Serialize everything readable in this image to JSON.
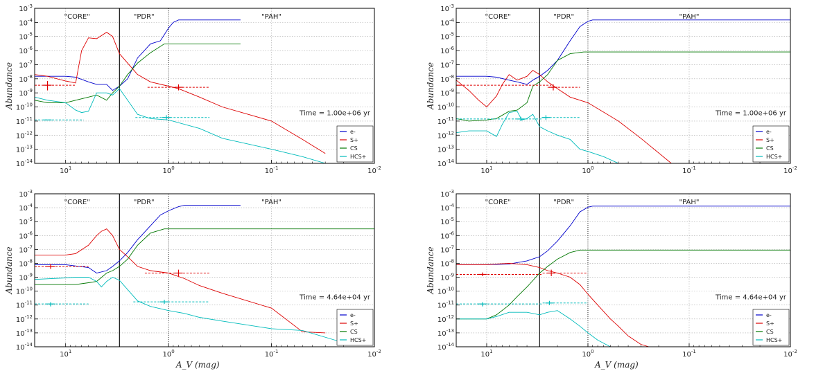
{
  "chart_data": [
    {
      "type": "line",
      "time_label": "Time = 1.00e+06 yr",
      "ylabel": "Abundance",
      "xlabel": "",
      "regions": [
        "\"CORE\"",
        "\"PDR\"",
        "\"PAH\""
      ],
      "region_bounds_av": [
        3.0,
        1.0
      ],
      "xlim": [
        20,
        0.01
      ],
      "ylim": [
        1e-14,
        0.001
      ],
      "xscale": "log",
      "yscale": "log",
      "grid": true,
      "legend": {
        "placement": "bottom-right",
        "labels": [
          "e-",
          "S+",
          "CS",
          "HCS+"
        ]
      },
      "series": [
        {
          "name": "e-",
          "color": "#0000cc",
          "av": [
            20,
            10,
            8,
            6,
            5,
            4,
            3.5,
            3,
            2.5,
            2,
            1.5,
            1.2,
            1,
            0.9,
            0.8,
            0.7,
            0.2
          ],
          "values": [
            1.5e-08,
            1.5e-08,
            1.3e-08,
            6e-09,
            4e-09,
            4e-09,
            1.5e-09,
            3e-09,
            1e-08,
            3e-07,
            3e-06,
            5e-06,
            4e-05,
            0.0001,
            0.00015,
            0.00015,
            0.00015
          ]
        },
        {
          "name": "S+",
          "color": "#dd0000",
          "av": [
            20,
            15,
            10,
            8,
            7,
            6,
            5,
            4,
            3.5,
            3,
            2,
            1.5,
            1,
            0.8,
            0.5,
            0.3,
            0.1,
            0.05,
            0.03
          ],
          "values": [
            2e-08,
            1.5e-08,
            7e-09,
            5e-09,
            1e-06,
            8e-06,
            7e-06,
            2e-05,
            1e-05,
            6e-07,
            2e-08,
            6e-09,
            3e-09,
            2e-09,
            5e-10,
            1e-10,
            1e-11,
            5e-13,
            5e-14
          ]
        },
        {
          "name": "CS",
          "color": "#007700",
          "av": [
            20,
            15,
            10,
            8,
            6,
            5,
            4,
            3.5,
            3,
            2.5,
            2,
            1.5,
            1.1,
            1,
            0.2
          ],
          "values": [
            3e-10,
            2e-10,
            2e-10,
            3e-10,
            5e-10,
            7e-10,
            3e-10,
            1e-09,
            3e-09,
            2e-08,
            1.3e-07,
            7e-07,
            3e-06,
            3e-06,
            3e-06
          ]
        },
        {
          "name": "HCS+",
          "color": "#00bbbb",
          "av": [
            20,
            15,
            10,
            8,
            7,
            6,
            5,
            4,
            3.5,
            3,
            2.5,
            2,
            1.5,
            1,
            0.5,
            0.3,
            0.1,
            0.05,
            0.03
          ],
          "values": [
            5e-10,
            3e-10,
            2e-10,
            6e-11,
            4e-11,
            5e-11,
            1e-09,
            1e-09,
            7e-10,
            2e-09,
            3e-10,
            3e-11,
            1.5e-11,
            1.2e-11,
            3e-12,
            6e-13,
            1e-13,
            3e-14,
            1e-14
          ]
        }
      ],
      "observations": [
        {
          "color": "#dd0000",
          "av": 15,
          "value": 3.5e-09,
          "xerr": [
            20,
            8
          ],
          "yerr": [
            1.5e-09,
            7e-09
          ]
        },
        {
          "color": "#dd0000",
          "av": 0.8,
          "value": 2.5e-09,
          "xerr": [
            1.6,
            0.4
          ],
          "yerr": [
            1.5e-09,
            4e-09
          ]
        },
        {
          "color": "#00bbbb",
          "av": 15,
          "value": 1.2e-11,
          "xerr": [
            20,
            6.7
          ]
        },
        {
          "color": "#00bbbb",
          "av": 1.05,
          "value": 1.8e-11,
          "xerr": [
            2.1,
            0.4
          ],
          "yerr": [
            1.2e-11,
            2.6e-11
          ]
        }
      ]
    },
    {
      "type": "line",
      "time_label": "Time = 1.00e+06 yr",
      "ylabel": "Abundance",
      "xlabel": "",
      "regions": [
        "\"CORE\"",
        "\"PDR\"",
        "\"PAH\""
      ],
      "region_bounds_av": [
        3.0,
        1.0
      ],
      "xlim": [
        20,
        0.01
      ],
      "ylim": [
        1e-14,
        0.001
      ],
      "xscale": "log",
      "yscale": "log",
      "grid": true,
      "legend": {
        "placement": "bottom-right",
        "labels": [
          "e-",
          "S+",
          "CS",
          "HCS+"
        ]
      },
      "series": [
        {
          "name": "e-",
          "color": "#0000cc",
          "av": [
            20,
            10,
            8,
            6,
            5,
            4,
            3.5,
            3,
            2.5,
            2,
            1.5,
            1.2,
            1,
            0.9,
            0.8,
            0.01
          ],
          "values": [
            1.5e-08,
            1.5e-08,
            1.3e-08,
            8e-09,
            6e-09,
            4e-09,
            8e-09,
            1.5e-08,
            4e-08,
            2e-07,
            5e-06,
            5e-05,
            0.00012,
            0.00015,
            0.00015,
            0.00015
          ]
        },
        {
          "name": "S+",
          "color": "#dd0000",
          "av": [
            20,
            15,
            12,
            10,
            8,
            7,
            6,
            5,
            4,
            3.5,
            3,
            2.5,
            2,
            1.5,
            1,
            0.5,
            0.3,
            0.15
          ],
          "values": [
            8e-09,
            1.5e-09,
            3e-10,
            1e-10,
            6e-10,
            4e-09,
            2e-08,
            8e-09,
            1.5e-08,
            4e-08,
            2e-08,
            6e-09,
            2e-09,
            5e-10,
            2e-10,
            1e-11,
            6e-13,
            1e-14
          ]
        },
        {
          "name": "CS",
          "color": "#007700",
          "av": [
            20,
            15,
            10,
            8,
            6,
            5,
            4,
            3.5,
            3,
            2.5,
            2,
            1.5,
            1.1,
            1,
            0.01
          ],
          "values": [
            1.5e-11,
            1e-11,
            1.2e-11,
            1.5e-11,
            5e-11,
            6e-11,
            2e-10,
            3e-09,
            6e-09,
            2e-08,
            2e-07,
            6e-07,
            8e-07,
            8e-07,
            8e-07
          ]
        },
        {
          "name": "HCS+",
          "color": "#00bbbb",
          "av": [
            20,
            15,
            10,
            8,
            7,
            6,
            5,
            4.5,
            4,
            3.5,
            3,
            2.5,
            2,
            1.5,
            1.2,
            1,
            0.7,
            0.5,
            0.3
          ],
          "values": [
            1.5e-12,
            2e-12,
            2e-12,
            8e-13,
            6e-12,
            4e-11,
            5e-11,
            1.2e-11,
            1.5e-11,
            3e-11,
            4e-12,
            2e-12,
            1e-12,
            5e-13,
            1e-13,
            7e-14,
            3e-14,
            1e-14,
            1e-14
          ]
        }
      ],
      "observations": [
        {
          "color": "#dd0000",
          "av": 20,
          "value": 3.5e-09,
          "xerr": [
            20,
            2.3
          ]
        },
        {
          "color": "#dd0000",
          "av": 2.2,
          "value": 2.5e-09,
          "xerr": [
            2.5,
            1.2
          ],
          "yerr": [
            1.5e-09,
            4e-09
          ]
        },
        {
          "color": "#00bbbb",
          "av": 4.6,
          "value": 1.4e-11,
          "xerr": [
            20,
            2.8
          ],
          "yerr": [
            1e-11,
            2e-11
          ]
        },
        {
          "color": "#00bbbb",
          "av": 2.6,
          "value": 1.8e-11,
          "xerr": [
            2.8,
            1.2
          ],
          "yerr": [
            1.2e-11,
            2.6e-11
          ]
        }
      ]
    },
    {
      "type": "line",
      "time_label": "Time = 4.64e+04 yr",
      "ylabel": "Abundance",
      "xlabel": "A_V (mag)",
      "regions": [
        "\"CORE\"",
        "\"PDR\"",
        "\"PAH\""
      ],
      "region_bounds_av": [
        3.0,
        1.0
      ],
      "xlim": [
        20,
        0.01
      ],
      "ylim": [
        1e-14,
        0.001
      ],
      "xscale": "log",
      "yscale": "log",
      "grid": true,
      "legend": {
        "placement": "bottom-right",
        "labels": [
          "e-",
          "S+",
          "CS",
          "HCS+"
        ]
      },
      "series": [
        {
          "name": "e-",
          "color": "#0000cc",
          "av": [
            20,
            10,
            6,
            5,
            4,
            3.5,
            3,
            2.5,
            2,
            1.5,
            1.2,
            1,
            0.8,
            0.7,
            0.2
          ],
          "values": [
            8e-09,
            8e-09,
            5e-09,
            2e-09,
            3e-09,
            6e-09,
            1.5e-08,
            6e-08,
            5e-07,
            5e-06,
            3e-05,
            6e-05,
            0.00012,
            0.00015,
            0.00015
          ]
        },
        {
          "name": "S+",
          "color": "#dd0000",
          "av": [
            20,
            10,
            8,
            6,
            5,
            4.5,
            4,
            3.5,
            3,
            2.5,
            2,
            1.5,
            1,
            0.7,
            0.5,
            0.3,
            0.1,
            0.05,
            0.03
          ],
          "values": [
            4e-08,
            4e-08,
            5e-08,
            2e-07,
            1e-06,
            2e-06,
            3e-06,
            1e-06,
            1e-07,
            3e-08,
            6e-09,
            3e-09,
            2e-09,
            8e-10,
            2.5e-10,
            7e-11,
            6e-12,
            1.2e-13,
            1e-13
          ]
        },
        {
          "name": "CS",
          "color": "#007700",
          "av": [
            20,
            10,
            8,
            6,
            5,
            4,
            3.5,
            3,
            2.5,
            2,
            1.5,
            1.1,
            1,
            0.01
          ],
          "values": [
            3e-10,
            3e-10,
            3e-10,
            4e-10,
            5e-10,
            2e-09,
            3e-09,
            6e-09,
            2e-08,
            2e-07,
            1.5e-06,
            3e-06,
            3e-06,
            3e-06
          ]
        },
        {
          "name": "HCS+",
          "color": "#00bbbb",
          "av": [
            20,
            10,
            8,
            6,
            5,
            4.5,
            4,
            3.5,
            3,
            2,
            1.5,
            1,
            0.7,
            0.5,
            0.3,
            0.1,
            0.05,
            0.02
          ],
          "values": [
            7e-10,
            9e-10,
            1e-09,
            1e-09,
            5e-10,
            2e-10,
            5e-10,
            1e-09,
            6e-10,
            2e-11,
            8e-12,
            4e-12,
            2.5e-12,
            1.3e-12,
            7e-13,
            2e-13,
            1.5e-13,
            2e-14
          ]
        }
      ],
      "observations": [
        {
          "color": "#dd0000",
          "av": 14,
          "value": 6e-09,
          "xerr": [
            20,
            6
          ],
          "yerr": [
            4e-09,
            9e-09
          ]
        },
        {
          "color": "#dd0000",
          "av": 0.8,
          "value": 2e-09,
          "xerr": [
            1.7,
            0.4
          ],
          "yerr": [
            1.2e-09,
            3.5e-09
          ]
        },
        {
          "color": "#00bbbb",
          "av": 14,
          "value": 1.2e-11,
          "xerr": [
            20,
            6
          ],
          "yerr": [
            8e-12,
            1.6e-11
          ]
        },
        {
          "color": "#00bbbb",
          "av": 1.1,
          "value": 1.7e-11,
          "xerr": [
            2.2,
            0.4
          ],
          "yerr": [
            1.2e-11,
            2.4e-11
          ]
        }
      ]
    },
    {
      "type": "line",
      "time_label": "Time = 4.64e+04 yr",
      "ylabel": "Abundance",
      "xlabel": "A_V (mag)",
      "regions": [
        "\"CORE\"",
        "\"PDR\"",
        "\"PAH\""
      ],
      "region_bounds_av": [
        3.0,
        1.0
      ],
      "xlim": [
        20,
        0.01
      ],
      "ylim": [
        1e-14,
        0.001
      ],
      "xscale": "log",
      "yscale": "log",
      "grid": true,
      "legend": {
        "placement": "bottom-right",
        "labels": [
          "e-",
          "S+",
          "CS",
          "HCS+"
        ]
      },
      "series": [
        {
          "name": "e-",
          "color": "#0000cc",
          "av": [
            20,
            10,
            6,
            4,
            3,
            2.5,
            2,
            1.5,
            1.2,
            1,
            0.9,
            0.01
          ],
          "values": [
            8e-09,
            8e-09,
            9e-09,
            1.5e-08,
            3e-08,
            8e-08,
            4e-07,
            5e-06,
            5e-05,
            0.00011,
            0.00013,
            0.00013
          ]
        },
        {
          "name": "S+",
          "color": "#dd0000",
          "av": [
            20,
            10,
            8,
            6,
            4,
            3,
            2.5,
            2,
            1.5,
            1.2,
            1,
            0.8,
            0.6,
            0.5,
            0.4,
            0.3,
            0.25
          ],
          "values": [
            8e-09,
            8e-09,
            9e-09,
            1e-08,
            8e-09,
            5e-09,
            3e-09,
            2e-09,
            1e-09,
            3e-10,
            6e-11,
            1e-11,
            1e-12,
            3e-13,
            6e-14,
            1.5e-14,
            1e-14
          ]
        },
        {
          "name": "CS",
          "color": "#007700",
          "av": [
            20,
            15,
            10,
            8,
            6,
            5,
            4,
            3,
            2.5,
            2,
            1.5,
            1.2,
            1,
            0.01
          ],
          "values": [
            1e-12,
            1e-12,
            1e-12,
            2e-12,
            1e-11,
            4e-11,
            2e-10,
            2e-09,
            6e-09,
            2e-08,
            6e-08,
            9e-08,
            9e-08,
            9e-08
          ]
        },
        {
          "name": "HCS+",
          "color": "#00bbbb",
          "av": [
            20,
            10,
            8,
            6,
            5,
            4,
            3,
            2.5,
            2,
            1.5,
            1.2,
            1,
            0.8,
            0.6
          ],
          "values": [
            1e-12,
            1e-12,
            1.5e-12,
            3e-12,
            3e-12,
            3e-12,
            2e-12,
            3e-12,
            4e-12,
            1e-12,
            3e-13,
            1e-13,
            3e-14,
            1e-14
          ]
        }
      ],
      "observations": [
        {
          "color": "#dd0000",
          "av": 11,
          "value": 1.6e-09,
          "xerr": [
            20,
            2.8
          ],
          "yerr": [
            1.2e-09,
            2.2e-09
          ]
        },
        {
          "color": "#dd0000",
          "av": 2.3,
          "value": 2e-09,
          "xerr": [
            2.8,
            1.0
          ],
          "yerr": [
            1.2e-09,
            3.5e-09
          ]
        },
        {
          "color": "#00bbbb",
          "av": 11,
          "value": 1.2e-11,
          "xerr": [
            20,
            2.8
          ],
          "yerr": [
            8e-12,
            1.6e-11
          ]
        },
        {
          "color": "#00bbbb",
          "av": 2.4,
          "value": 1.4e-11,
          "xerr": [
            2.8,
            1.0
          ],
          "yerr": [
            1e-11,
            2e-11
          ]
        }
      ]
    }
  ]
}
